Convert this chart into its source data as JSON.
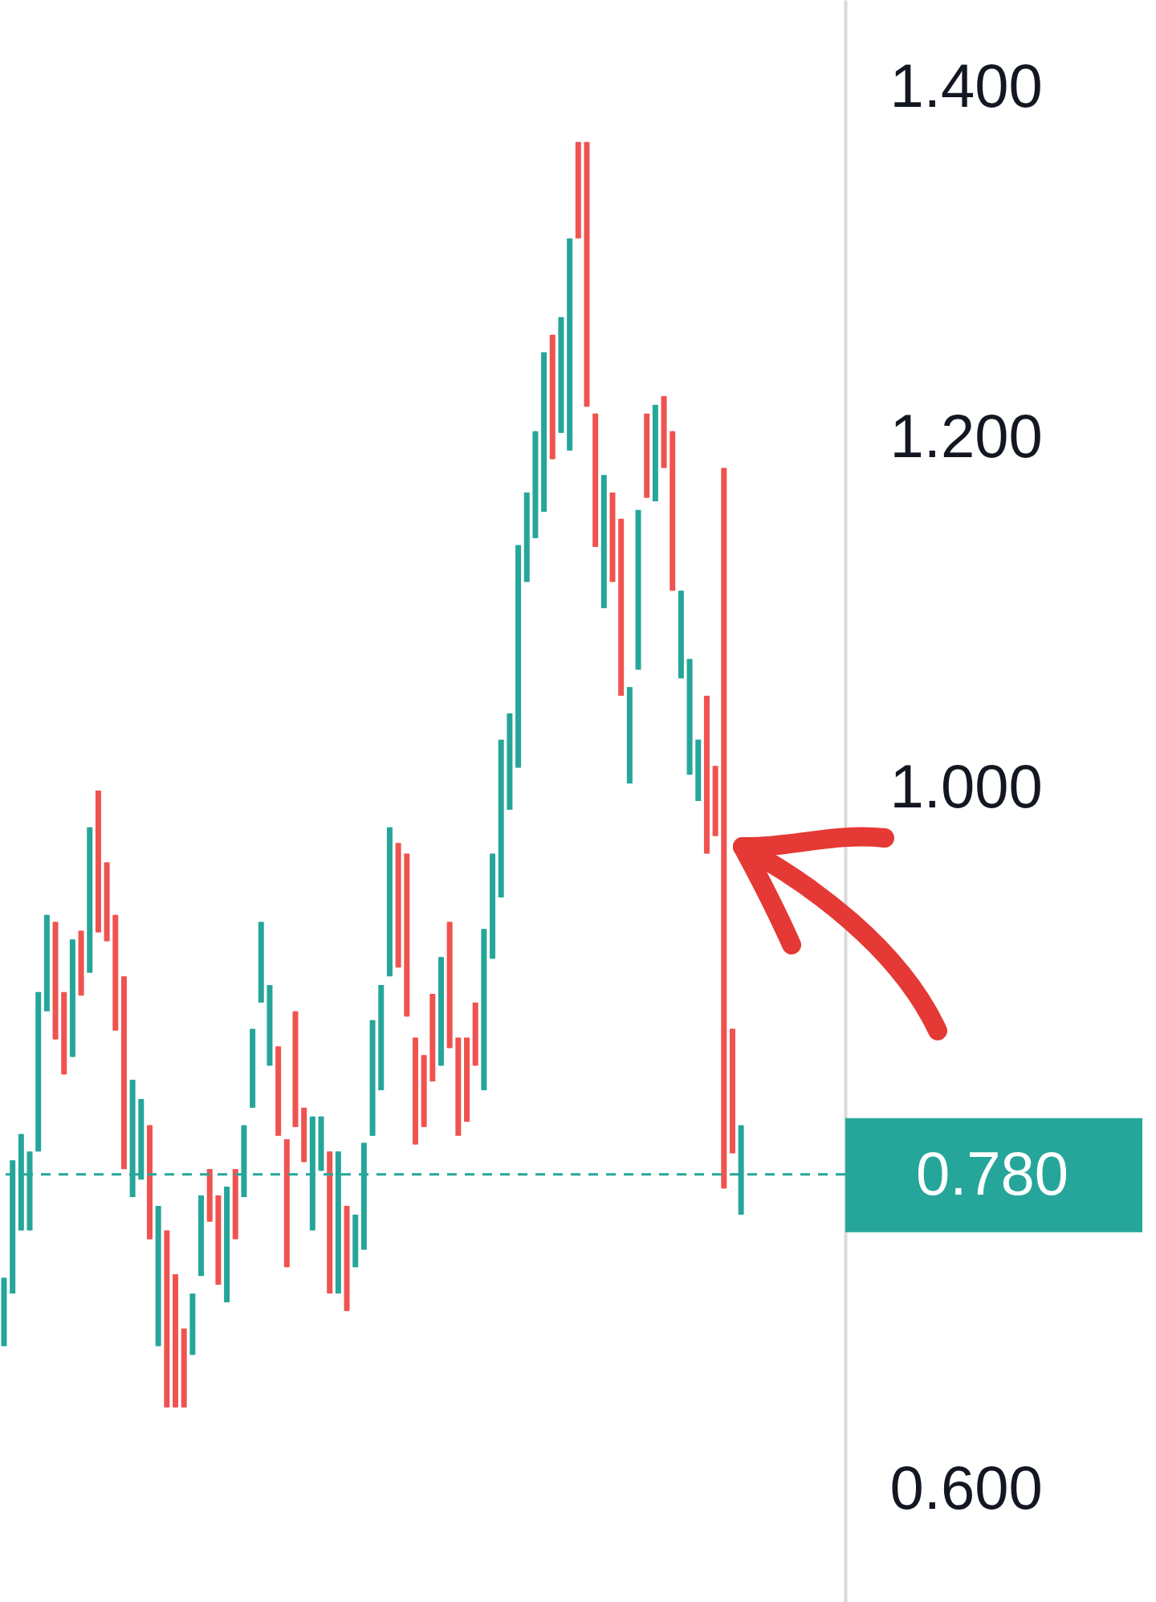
{
  "chart_data": {
    "type": "candlestick",
    "categories": [
      null,
      null,
      null,
      null,
      null,
      null,
      null,
      null,
      null,
      null,
      null,
      null,
      null,
      null,
      null,
      null,
      null,
      null,
      null,
      null,
      null,
      null,
      null,
      null,
      null,
      null,
      null,
      null,
      null,
      null,
      null,
      null,
      null,
      null,
      null,
      null,
      null,
      null,
      null,
      null,
      null,
      null,
      null,
      null,
      null,
      null,
      null,
      null,
      null,
      null,
      null,
      null,
      null,
      null,
      null,
      null,
      null,
      null,
      null,
      null,
      null,
      null,
      null,
      null,
      null,
      null,
      null,
      null,
      null,
      null,
      null,
      null,
      null,
      null,
      null,
      null,
      null,
      null,
      null,
      null,
      null,
      null,
      null,
      null,
      null,
      null,
      null
    ],
    "ohlc": [
      [
        0.682,
        0.721,
        0.682,
        0.721
      ],
      [
        0.712,
        0.788,
        0.712,
        0.788
      ],
      [
        0.748,
        0.803,
        0.748,
        0.803
      ],
      [
        0.748,
        0.793,
        0.748,
        0.793
      ],
      [
        0.793,
        0.884,
        0.793,
        0.884
      ],
      [
        0.873,
        0.928,
        0.873,
        0.928
      ],
      [
        0.924,
        0.924,
        0.857,
        0.857
      ],
      [
        0.884,
        0.884,
        0.837,
        0.837
      ],
      [
        0.847,
        0.914,
        0.847,
        0.914
      ],
      [
        0.919,
        0.919,
        0.882,
        0.882
      ],
      [
        0.895,
        0.978,
        0.895,
        0.978
      ],
      [
        0.999,
        0.999,
        0.918,
        0.918
      ],
      [
        0.958,
        0.958,
        0.913,
        0.913
      ],
      [
        0.928,
        0.928,
        0.862,
        0.862
      ],
      [
        0.893,
        0.893,
        0.783,
        0.783
      ],
      [
        0.767,
        0.834,
        0.767,
        0.834
      ],
      [
        0.777,
        0.823,
        0.777,
        0.823
      ],
      [
        0.808,
        0.808,
        0.743,
        0.743
      ],
      [
        0.682,
        0.762,
        0.682,
        0.762
      ],
      [
        0.748,
        0.748,
        0.647,
        0.647
      ],
      [
        0.723,
        0.723,
        0.647,
        0.647
      ],
      [
        0.692,
        0.692,
        0.647,
        0.647
      ],
      [
        0.677,
        0.712,
        0.677,
        0.712
      ],
      [
        0.722,
        0.768,
        0.722,
        0.768
      ],
      [
        0.783,
        0.783,
        0.753,
        0.753
      ],
      [
        0.768,
        0.768,
        0.717,
        0.717
      ],
      [
        0.707,
        0.773,
        0.707,
        0.773
      ],
      [
        0.783,
        0.783,
        0.743,
        0.743
      ],
      [
        0.767,
        0.808,
        0.767,
        0.808
      ],
      [
        0.818,
        0.863,
        0.818,
        0.863
      ],
      [
        0.878,
        0.924,
        0.878,
        0.924
      ],
      [
        0.842,
        0.888,
        0.842,
        0.888
      ],
      [
        0.853,
        0.853,
        0.802,
        0.802
      ],
      [
        0.8,
        0.8,
        0.727,
        0.727
      ],
      [
        0.873,
        0.873,
        0.807,
        0.807
      ],
      [
        0.818,
        0.818,
        0.787,
        0.787
      ],
      [
        0.748,
        0.813,
        0.748,
        0.813
      ],
      [
        0.782,
        0.813,
        0.782,
        0.813
      ],
      [
        0.793,
        0.793,
        0.712,
        0.712
      ],
      [
        0.712,
        0.793,
        0.712,
        0.793
      ],
      [
        0.762,
        0.762,
        0.702,
        0.702
      ],
      [
        0.727,
        0.757,
        0.727,
        0.757
      ],
      [
        0.737,
        0.798,
        0.737,
        0.798
      ],
      [
        0.802,
        0.868,
        0.802,
        0.868
      ],
      [
        0.828,
        0.888,
        0.828,
        0.888
      ],
      [
        0.893,
        0.978,
        0.893,
        0.978
      ],
      [
        0.969,
        0.969,
        0.898,
        0.898
      ],
      [
        0.963,
        0.963,
        0.87,
        0.87
      ],
      [
        0.858,
        0.858,
        0.797,
        0.797
      ],
      [
        0.848,
        0.848,
        0.807,
        0.807
      ],
      [
        0.883,
        0.883,
        0.833,
        0.833
      ],
      [
        0.842,
        0.904,
        0.842,
        0.904
      ],
      [
        0.924,
        0.924,
        0.852,
        0.852
      ],
      [
        0.858,
        0.858,
        0.802,
        0.802
      ],
      [
        0.858,
        0.858,
        0.81,
        0.81
      ],
      [
        0.878,
        0.878,
        0.842,
        0.842
      ],
      [
        0.828,
        0.92,
        0.828,
        0.92
      ],
      [
        0.903,
        0.963,
        0.903,
        0.963
      ],
      [
        0.938,
        1.028,
        0.938,
        1.028
      ],
      [
        0.988,
        1.043,
        0.988,
        1.043
      ],
      [
        1.012,
        1.139,
        1.012,
        1.139
      ],
      [
        1.118,
        1.169,
        1.118,
        1.169
      ],
      [
        1.143,
        1.204,
        1.143,
        1.204
      ],
      [
        1.158,
        1.249,
        1.158,
        1.249
      ],
      [
        1.259,
        1.259,
        1.188,
        1.188
      ],
      [
        1.203,
        1.269,
        1.203,
        1.269
      ],
      [
        1.193,
        1.314,
        1.193,
        1.314
      ],
      [
        1.369,
        1.369,
        1.314,
        1.314
      ],
      [
        1.369,
        1.369,
        1.218,
        1.218
      ],
      [
        1.214,
        1.214,
        1.138,
        1.138
      ],
      [
        1.103,
        1.179,
        1.103,
        1.179
      ],
      [
        1.169,
        1.169,
        1.118,
        1.118
      ],
      [
        1.154,
        1.154,
        1.053,
        1.053
      ],
      [
        1.003,
        1.058,
        1.003,
        1.058
      ],
      [
        1.068,
        1.159,
        1.068,
        1.159
      ],
      [
        1.214,
        1.214,
        1.166,
        1.166
      ],
      [
        1.164,
        1.219,
        1.164,
        1.219
      ],
      [
        1.224,
        1.224,
        1.183,
        1.183
      ],
      [
        1.204,
        1.204,
        1.113,
        1.113
      ],
      [
        1.063,
        1.113,
        1.063,
        1.113
      ],
      [
        1.008,
        1.074,
        1.008,
        1.074
      ],
      [
        0.993,
        1.028,
        0.993,
        1.028
      ],
      [
        1.053,
        1.053,
        0.963,
        0.963
      ],
      [
        1.013,
        1.013,
        0.973,
        0.973
      ],
      [
        1.183,
        1.183,
        0.772,
        0.772
      ],
      [
        0.863,
        0.863,
        0.792,
        0.792
      ],
      [
        0.757,
        0.808,
        0.757,
        0.808
      ]
    ],
    "colors": [
      "#26a69a",
      "#26a69a",
      "#26a69a",
      "#26a69a",
      "#26a69a",
      "#26a69a",
      "#ef5350",
      "#ef5350",
      "#26a69a",
      "#ef5350",
      "#26a69a",
      "#ef5350",
      "#ef5350",
      "#ef5350",
      "#ef5350",
      "#26a69a",
      "#26a69a",
      "#ef5350",
      "#26a69a",
      "#ef5350",
      "#ef5350",
      "#ef5350",
      "#26a69a",
      "#26a69a",
      "#ef5350",
      "#ef5350",
      "#26a69a",
      "#ef5350",
      "#26a69a",
      "#26a69a",
      "#26a69a",
      "#26a69a",
      "#ef5350",
      "#ef5350",
      "#ef5350",
      "#ef5350",
      "#26a69a",
      "#26a69a",
      "#ef5350",
      "#26a69a",
      "#ef5350",
      "#26a69a",
      "#26a69a",
      "#26a69a",
      "#26a69a",
      "#26a69a",
      "#ef5350",
      "#ef5350",
      "#ef5350",
      "#ef5350",
      "#ef5350",
      "#26a69a",
      "#ef5350",
      "#ef5350",
      "#ef5350",
      "#ef5350",
      "#26a69a",
      "#26a69a",
      "#26a69a",
      "#26a69a",
      "#26a69a",
      "#26a69a",
      "#26a69a",
      "#26a69a",
      "#ef5350",
      "#26a69a",
      "#26a69a",
      "#ef5350",
      "#ef5350",
      "#ef5350",
      "#26a69a",
      "#ef5350",
      "#ef5350",
      "#26a69a",
      "#26a69a",
      "#ef5350",
      "#26a69a",
      "#ef5350",
      "#ef5350",
      "#26a69a",
      "#26a69a",
      "#26a69a",
      "#ef5350",
      "#ef5350",
      "#ef5350",
      "#ef5350",
      "#26a69a"
    ],
    "ylim": [
      0.536,
      1.45
    ],
    "yticks": [
      {
        "value": 0.6,
        "label": "0.600"
      },
      {
        "value": 1.0,
        "label": "1.000"
      },
      {
        "value": 1.2,
        "label": "1.200"
      },
      {
        "value": 1.4,
        "label": "1.400"
      }
    ],
    "tick_labels": "y",
    "ref_lines": [
      {
        "axis": "y",
        "value": 0.78,
        "label": "0.780",
        "color": "#26a69a",
        "line_style": "dashed"
      }
    ]
  }
}
